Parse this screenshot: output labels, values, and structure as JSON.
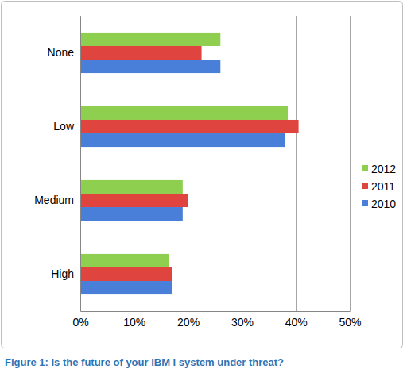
{
  "chart_data": {
    "type": "bar",
    "orientation": "horizontal",
    "title": "Figure 1: Is the future of your IBM i system under threat?",
    "categories": [
      "None",
      "Low",
      "Medium",
      "High"
    ],
    "series": [
      {
        "name": "2012",
        "color": "#8fcf4f",
        "values": [
          26,
          38.5,
          19,
          16.5
        ]
      },
      {
        "name": "2011",
        "color": "#e0443e",
        "values": [
          22.5,
          40.5,
          20,
          17
        ]
      },
      {
        "name": "2010",
        "color": "#4a7fd9",
        "values": [
          26,
          38,
          19,
          17
        ]
      }
    ],
    "xlim": [
      0,
      50
    ],
    "xticks": [
      {
        "value": 0,
        "label": "0%"
      },
      {
        "value": 10,
        "label": "10%"
      },
      {
        "value": 20,
        "label": "20%"
      },
      {
        "value": 30,
        "label": "30%"
      },
      {
        "value": 40,
        "label": "40%"
      },
      {
        "value": 50,
        "label": "50%"
      }
    ],
    "grid": true,
    "legend": "right"
  }
}
